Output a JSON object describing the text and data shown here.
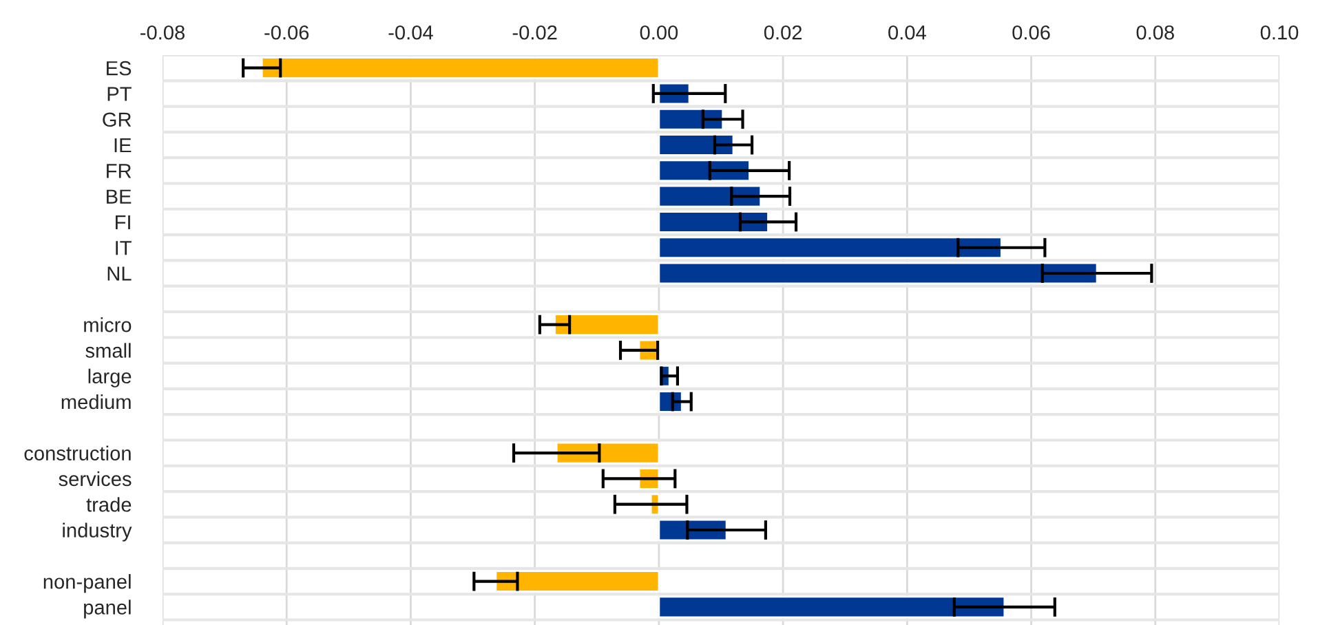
{
  "chart_data": {
    "type": "bar",
    "orientation": "horizontal",
    "categories": [
      "ES",
      "PT",
      "GR",
      "IE",
      "FR",
      "BE",
      "FI",
      "IT",
      "NL",
      null,
      "micro",
      "small",
      "large",
      "medium",
      null,
      "construction",
      "services",
      "trade",
      "industry",
      null,
      "non-panel",
      "panel"
    ],
    "values": [
      -0.064,
      0.0049,
      0.0103,
      0.012,
      0.0146,
      0.0164,
      0.0176,
      0.0552,
      0.0706,
      null,
      -0.0168,
      -0.0032,
      0.0017,
      0.0037,
      null,
      -0.0165,
      -0.0032,
      -0.0013,
      0.0109,
      null,
      -0.0263,
      0.0557
    ],
    "errors": [
      0.003,
      0.0058,
      0.0032,
      0.003,
      0.0064,
      0.0047,
      0.0045,
      0.007,
      0.0088,
      null,
      0.0024,
      0.003,
      0.0013,
      0.0015,
      null,
      0.0069,
      0.0058,
      0.0058,
      0.0063,
      null,
      0.0035,
      0.0081
    ],
    "colors": [
      "#ffb400",
      "#003894",
      "#003894",
      "#003894",
      "#003894",
      "#003894",
      "#003894",
      "#003894",
      "#003894",
      null,
      "#ffb400",
      "#ffb400",
      "#003894",
      "#003894",
      null,
      "#ffb400",
      "#ffb400",
      "#ffb400",
      "#003894",
      null,
      "#ffb400",
      "#003894"
    ],
    "xlim": [
      -0.08,
      0.1
    ],
    "xticks": [
      -0.08,
      -0.06,
      -0.04,
      -0.02,
      {
        "value": 0,
        "label": "0.00"
      },
      0.02,
      0.04,
      0.06,
      0.08,
      {
        "value": 0.1,
        "label": "0.10"
      }
    ],
    "grid": true
  }
}
